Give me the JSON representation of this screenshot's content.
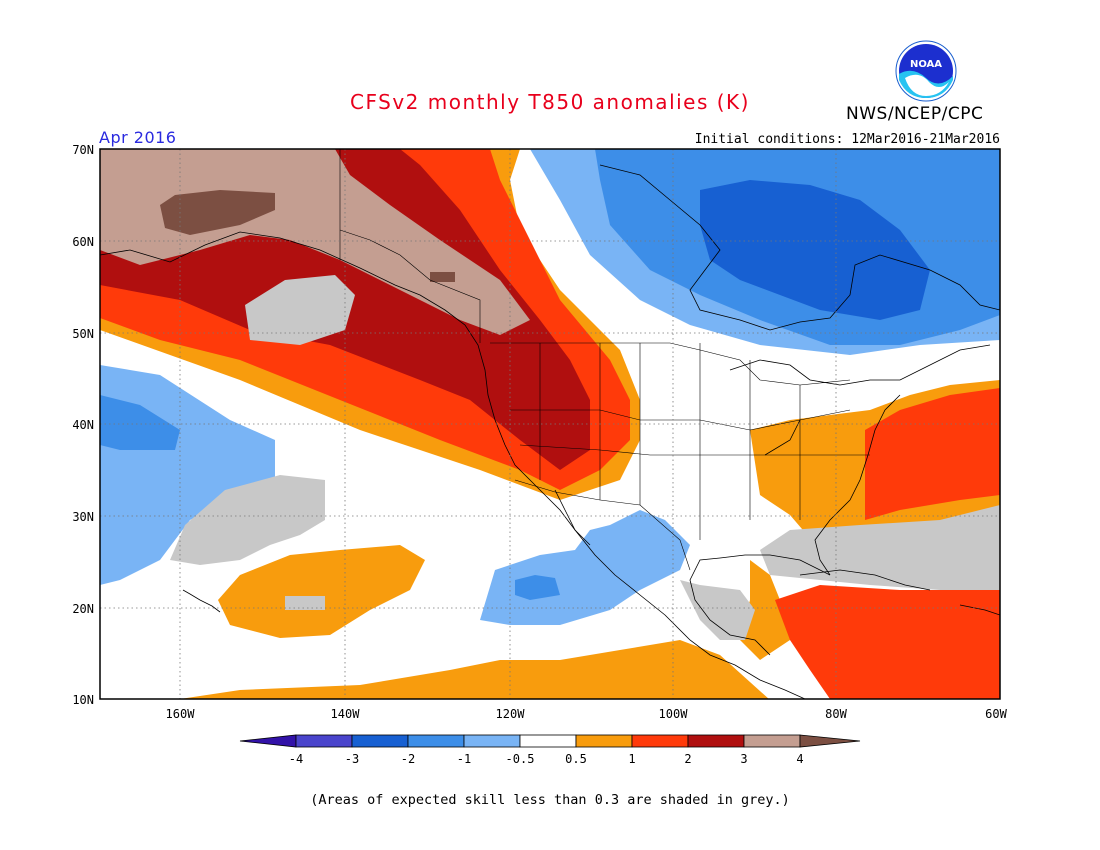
{
  "header": {
    "title": "CFSv2 monthly T850 anomalies (K)",
    "agency": "NWS/NCEP/CPC",
    "logo_text": "NOAA",
    "month": "Apr 2016",
    "initial_conditions": "Initial conditions: 12Mar2016-21Mar2016"
  },
  "map": {
    "lat_labels": [
      "70N",
      "60N",
      "50N",
      "40N",
      "30N",
      "20N",
      "10N"
    ],
    "lon_labels": [
      "160W",
      "140W",
      "120W",
      "100W",
      "80W",
      "60W"
    ],
    "grid": "dotted"
  },
  "legend": {
    "labels": [
      "-4",
      "-3",
      "-2",
      "-1",
      "-0.5",
      "0.5",
      "1",
      "2",
      "3",
      "4"
    ],
    "colors": [
      "#3212a8",
      "#4a44cc",
      "#1760d2",
      "#3d8ee8",
      "#79b4f5",
      "#ffffff",
      "#f89c0d",
      "#ff3a0a",
      "#b00f0f",
      "#c49e91",
      "#7c4f42"
    ]
  },
  "colors": {
    "skill_grey": "#c8c8c8",
    "cold_mid": "#3d8ee8",
    "cold_light": "#79b4f5",
    "cold_dark": "#1760d2",
    "warm_light": "#f89c0d",
    "warm_mid": "#ff3a0a",
    "warm_dark": "#b00f0f",
    "warm_tan": "#c49e91",
    "warm_brown": "#7c4f42"
  },
  "footnote": "(Areas of expected skill less than 0.3 are shaded in grey.)"
}
